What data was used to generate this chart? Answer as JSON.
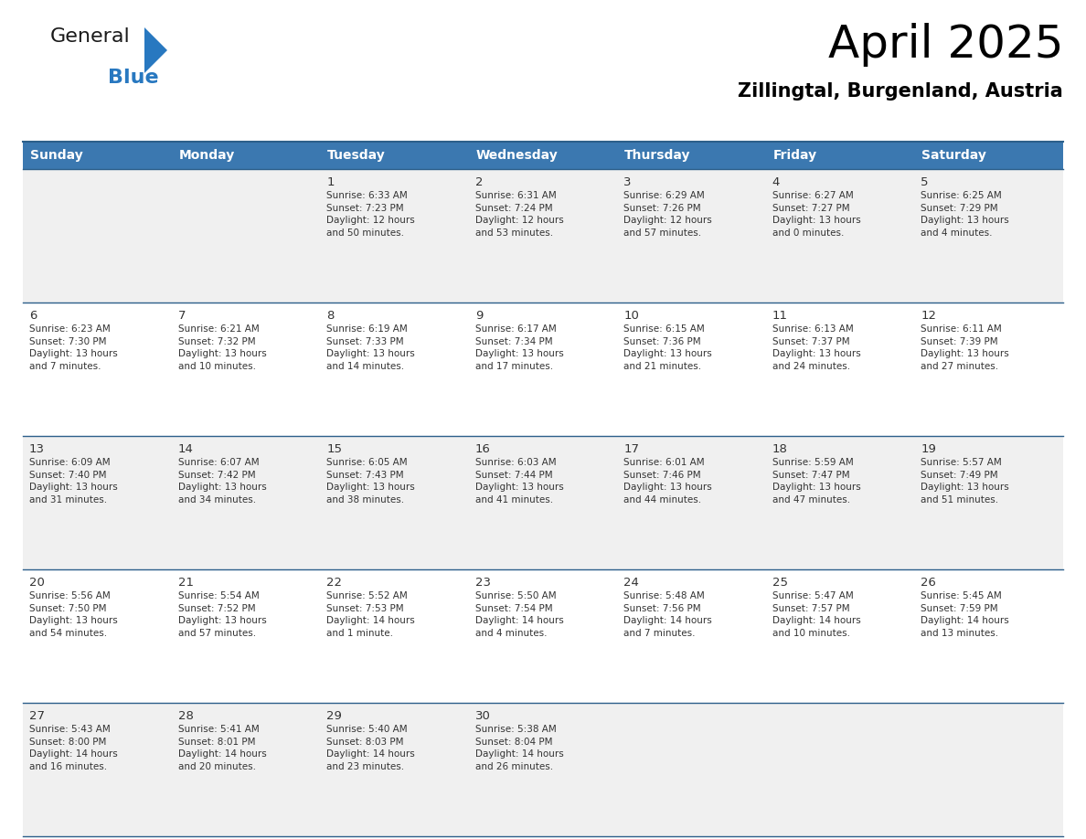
{
  "title": "April 2025",
  "subtitle": "Zillingtal, Burgenland, Austria",
  "header_bg_color": "#3b78b0",
  "header_text_color": "#ffffff",
  "row_bg_colors": [
    "#f0f0f0",
    "#ffffff"
  ],
  "border_color": "#2c5f8a",
  "cell_border_color": "#aaaaaa",
  "text_color": "#333333",
  "days_header": [
    "Sunday",
    "Monday",
    "Tuesday",
    "Wednesday",
    "Thursday",
    "Friday",
    "Saturday"
  ],
  "weeks": [
    [
      {
        "day": "",
        "info": ""
      },
      {
        "day": "",
        "info": ""
      },
      {
        "day": "1",
        "info": "Sunrise: 6:33 AM\nSunset: 7:23 PM\nDaylight: 12 hours\nand 50 minutes."
      },
      {
        "day": "2",
        "info": "Sunrise: 6:31 AM\nSunset: 7:24 PM\nDaylight: 12 hours\nand 53 minutes."
      },
      {
        "day": "3",
        "info": "Sunrise: 6:29 AM\nSunset: 7:26 PM\nDaylight: 12 hours\nand 57 minutes."
      },
      {
        "day": "4",
        "info": "Sunrise: 6:27 AM\nSunset: 7:27 PM\nDaylight: 13 hours\nand 0 minutes."
      },
      {
        "day": "5",
        "info": "Sunrise: 6:25 AM\nSunset: 7:29 PM\nDaylight: 13 hours\nand 4 minutes."
      }
    ],
    [
      {
        "day": "6",
        "info": "Sunrise: 6:23 AM\nSunset: 7:30 PM\nDaylight: 13 hours\nand 7 minutes."
      },
      {
        "day": "7",
        "info": "Sunrise: 6:21 AM\nSunset: 7:32 PM\nDaylight: 13 hours\nand 10 minutes."
      },
      {
        "day": "8",
        "info": "Sunrise: 6:19 AM\nSunset: 7:33 PM\nDaylight: 13 hours\nand 14 minutes."
      },
      {
        "day": "9",
        "info": "Sunrise: 6:17 AM\nSunset: 7:34 PM\nDaylight: 13 hours\nand 17 minutes."
      },
      {
        "day": "10",
        "info": "Sunrise: 6:15 AM\nSunset: 7:36 PM\nDaylight: 13 hours\nand 21 minutes."
      },
      {
        "day": "11",
        "info": "Sunrise: 6:13 AM\nSunset: 7:37 PM\nDaylight: 13 hours\nand 24 minutes."
      },
      {
        "day": "12",
        "info": "Sunrise: 6:11 AM\nSunset: 7:39 PM\nDaylight: 13 hours\nand 27 minutes."
      }
    ],
    [
      {
        "day": "13",
        "info": "Sunrise: 6:09 AM\nSunset: 7:40 PM\nDaylight: 13 hours\nand 31 minutes."
      },
      {
        "day": "14",
        "info": "Sunrise: 6:07 AM\nSunset: 7:42 PM\nDaylight: 13 hours\nand 34 minutes."
      },
      {
        "day": "15",
        "info": "Sunrise: 6:05 AM\nSunset: 7:43 PM\nDaylight: 13 hours\nand 38 minutes."
      },
      {
        "day": "16",
        "info": "Sunrise: 6:03 AM\nSunset: 7:44 PM\nDaylight: 13 hours\nand 41 minutes."
      },
      {
        "day": "17",
        "info": "Sunrise: 6:01 AM\nSunset: 7:46 PM\nDaylight: 13 hours\nand 44 minutes."
      },
      {
        "day": "18",
        "info": "Sunrise: 5:59 AM\nSunset: 7:47 PM\nDaylight: 13 hours\nand 47 minutes."
      },
      {
        "day": "19",
        "info": "Sunrise: 5:57 AM\nSunset: 7:49 PM\nDaylight: 13 hours\nand 51 minutes."
      }
    ],
    [
      {
        "day": "20",
        "info": "Sunrise: 5:56 AM\nSunset: 7:50 PM\nDaylight: 13 hours\nand 54 minutes."
      },
      {
        "day": "21",
        "info": "Sunrise: 5:54 AM\nSunset: 7:52 PM\nDaylight: 13 hours\nand 57 minutes."
      },
      {
        "day": "22",
        "info": "Sunrise: 5:52 AM\nSunset: 7:53 PM\nDaylight: 14 hours\nand 1 minute."
      },
      {
        "day": "23",
        "info": "Sunrise: 5:50 AM\nSunset: 7:54 PM\nDaylight: 14 hours\nand 4 minutes."
      },
      {
        "day": "24",
        "info": "Sunrise: 5:48 AM\nSunset: 7:56 PM\nDaylight: 14 hours\nand 7 minutes."
      },
      {
        "day": "25",
        "info": "Sunrise: 5:47 AM\nSunset: 7:57 PM\nDaylight: 14 hours\nand 10 minutes."
      },
      {
        "day": "26",
        "info": "Sunrise: 5:45 AM\nSunset: 7:59 PM\nDaylight: 14 hours\nand 13 minutes."
      }
    ],
    [
      {
        "day": "27",
        "info": "Sunrise: 5:43 AM\nSunset: 8:00 PM\nDaylight: 14 hours\nand 16 minutes."
      },
      {
        "day": "28",
        "info": "Sunrise: 5:41 AM\nSunset: 8:01 PM\nDaylight: 14 hours\nand 20 minutes."
      },
      {
        "day": "29",
        "info": "Sunrise: 5:40 AM\nSunset: 8:03 PM\nDaylight: 14 hours\nand 23 minutes."
      },
      {
        "day": "30",
        "info": "Sunrise: 5:38 AM\nSunset: 8:04 PM\nDaylight: 14 hours\nand 26 minutes."
      },
      {
        "day": "",
        "info": ""
      },
      {
        "day": "",
        "info": ""
      },
      {
        "day": "",
        "info": ""
      }
    ]
  ],
  "logo_text_general": "General",
  "logo_text_blue": "Blue",
  "logo_color_general": "#1a1a1a",
  "logo_color_blue": "#2878c0",
  "logo_triangle_color": "#2878c0",
  "title_fontsize": 36,
  "subtitle_fontsize": 15,
  "header_fontsize": 10,
  "day_num_fontsize": 9.5,
  "info_fontsize": 7.5
}
